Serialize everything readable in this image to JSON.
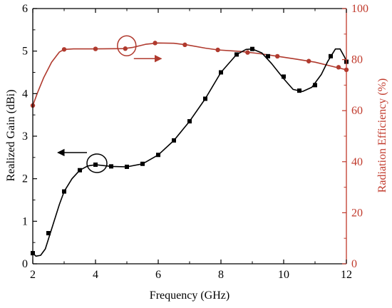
{
  "chart_data": {
    "type": "line",
    "xlabel": "Frequency (GHz)",
    "ylabel_left": "Realized Gain (dBi)",
    "ylabel_right": "Radiation Efficiency (%)",
    "xlim": [
      2,
      12
    ],
    "ylim_left": [
      0,
      6
    ],
    "ylim_right": [
      0,
      100
    ],
    "xticks": [
      "2",
      "4",
      "6",
      "8",
      "10",
      "12"
    ],
    "yticks_left": [
      "0",
      "1",
      "2",
      "3",
      "4",
      "5",
      "6"
    ],
    "yticks_right": [
      "0",
      "20",
      "40",
      "60",
      "80",
      "100"
    ],
    "grid": false,
    "legend": "none",
    "colors": {
      "gain": "#000000",
      "efficiency": "#b03a2e",
      "right_axis": "#c0392b"
    },
    "series": [
      {
        "axis": "left",
        "marker": "square",
        "curve_x": [
          2,
          2.1,
          2.25,
          2.4,
          2.55,
          2.7,
          2.85,
          3.0,
          3.25,
          3.5,
          3.75,
          4.0,
          4.5,
          5.0,
          5.5,
          6.0,
          6.5,
          7.0,
          7.5,
          8.0,
          8.5,
          8.8,
          9.0,
          9.3,
          9.6,
          10.0,
          10.3,
          10.6,
          10.9,
          11.2,
          11.4,
          11.65,
          11.8,
          11.95,
          12.0
        ],
        "curve_y": [
          0.25,
          0.18,
          0.2,
          0.35,
          0.7,
          1.05,
          1.4,
          1.7,
          2.0,
          2.2,
          2.3,
          2.33,
          2.29,
          2.28,
          2.35,
          2.56,
          2.9,
          3.35,
          3.88,
          4.5,
          4.92,
          5.04,
          5.05,
          4.96,
          4.72,
          4.35,
          4.1,
          4.05,
          4.15,
          4.45,
          4.75,
          5.05,
          5.05,
          4.85,
          4.75
        ],
        "marker_x": [
          2.0,
          2.5,
          3.0,
          3.5,
          4.0,
          4.5,
          5.0,
          5.5,
          6.0,
          6.5,
          7.0,
          7.5,
          8.0,
          8.5,
          9.0,
          9.5,
          10.0,
          10.5,
          11.0,
          11.5,
          12.0
        ],
        "marker_y": [
          0.25,
          0.72,
          1.7,
          2.2,
          2.33,
          2.29,
          2.28,
          2.35,
          2.56,
          2.9,
          3.35,
          3.88,
          4.5,
          4.92,
          5.05,
          4.88,
          4.4,
          4.07,
          4.2,
          4.88,
          4.75
        ]
      },
      {
        "axis": "right",
        "marker": "circle",
        "curve_x": [
          2,
          2.15,
          2.35,
          2.6,
          2.85,
          3.0,
          3.3,
          4.0,
          4.9,
          5.2,
          5.6,
          6.0,
          6.5,
          6.9,
          7.5,
          7.9,
          8.6,
          9.2,
          9.8,
          10.4,
          11.0,
          11.6,
          12.0
        ],
        "curve_y": [
          62,
          67,
          73,
          79,
          83,
          84,
          84.2,
          84.2,
          84.3,
          84.8,
          86,
          86.5,
          86.4,
          85.8,
          84.5,
          83.8,
          83.2,
          82.4,
          81.3,
          80.2,
          79,
          77.2,
          76
        ],
        "marker_x": [
          2.0,
          3.0,
          4.0,
          4.95,
          5.9,
          6.85,
          7.9,
          8.85,
          9.8,
          10.8,
          11.75,
          12.0
        ],
        "marker_y": [
          62,
          84,
          84.2,
          84.3,
          86.5,
          85.8,
          83.8,
          82.8,
          81.3,
          79.4,
          77,
          76
        ]
      }
    ],
    "annotations": [
      {
        "type": "circle",
        "target": "gain",
        "x": 4.0,
        "y": 2.33,
        "arrow": "left",
        "arrow_to_x": 2.8
      },
      {
        "type": "circle",
        "target": "efficiency",
        "x": 4.95,
        "y_right": 84.3,
        "arrow": "right",
        "arrow_to_x": 6.1
      }
    ]
  }
}
